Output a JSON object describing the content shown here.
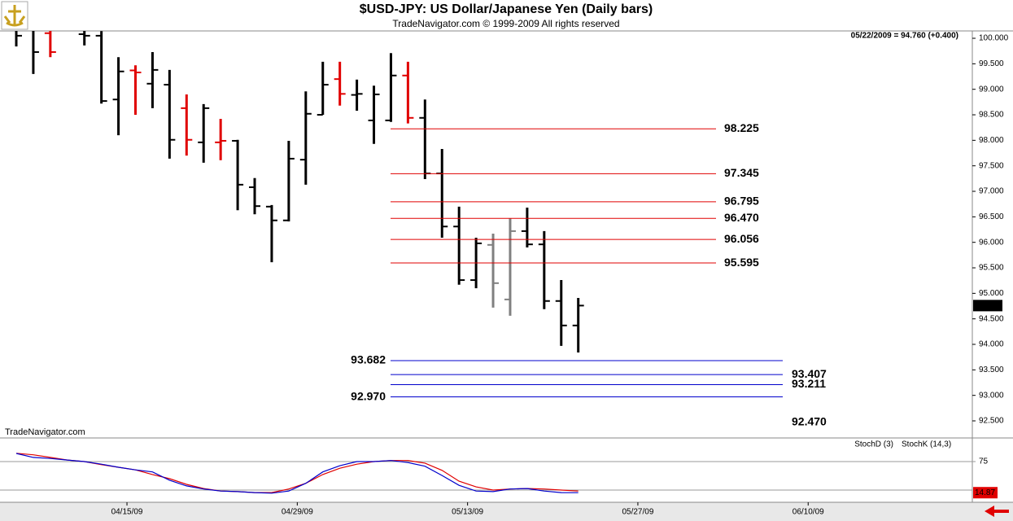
{
  "chart_data": [
    {
      "type": "ohlc",
      "title": "$USD-JPY:  US Dollar/Japanese Yen  (Daily bars)",
      "subtitle": "TradeNavigator.com © 1999-2009 All rights reserved",
      "last_quote": "05/22/2009 = 94.760 (+0.400)",
      "watermark": "TradeNavigator.com",
      "price_label": {
        "value": 94.76,
        "label": "94.760"
      },
      "categories": [
        null,
        null,
        null,
        null,
        null,
        null,
        "04/15/09",
        null,
        null,
        null,
        null,
        null,
        null,
        null,
        null,
        null,
        "04/29/09",
        null,
        null,
        null,
        null,
        null,
        null,
        null,
        null,
        null,
        "05/13/09",
        null,
        null,
        null,
        null,
        null,
        null,
        null,
        null,
        null,
        "05/27/09",
        null,
        null,
        null,
        null,
        null,
        null,
        null,
        null,
        null,
        "06/10/09",
        null,
        null,
        null,
        null,
        null,
        null,
        null,
        null,
        null,
        null
      ],
      "open": [
        100.4,
        100.2,
        100.1,
        100.5,
        100.08,
        100.05,
        98.8,
        99.37,
        99.11,
        99.09,
        98.63,
        97.96,
        97.96,
        97.99,
        97.08,
        96.7,
        96.43,
        97.62,
        98.5,
        99.2,
        98.89,
        98.39,
        98.39,
        99.27,
        98.44,
        97.35,
        96.31,
        95.26,
        95.95,
        94.88,
        96.22,
        95.96,
        94.85,
        94.37,
        null,
        null,
        null,
        null,
        null,
        null,
        null,
        null,
        null,
        null,
        null,
        null,
        null,
        null,
        null,
        null,
        null,
        null,
        null,
        null,
        null,
        null,
        null
      ],
      "high": [
        100.6,
        100.4,
        100.3,
        100.7,
        100.3,
        100.14,
        99.63,
        99.47,
        99.73,
        99.38,
        98.9,
        98.71,
        98.42,
        98.01,
        97.26,
        96.73,
        97.99,
        98.96,
        99.54,
        99.54,
        99.19,
        99.07,
        99.71,
        99.54,
        98.8,
        97.83,
        96.7,
        96.09,
        96.17,
        96.47,
        96.68,
        96.22,
        95.26,
        94.91,
        null,
        null,
        null,
        null,
        null,
        null,
        null,
        null,
        null,
        null,
        null,
        null,
        null,
        null,
        null,
        null,
        null,
        null,
        null,
        null,
        null,
        null,
        null
      ],
      "low": [
        99.84,
        99.3,
        99.63,
        100.35,
        99.86,
        98.72,
        98.1,
        98.5,
        98.63,
        97.64,
        97.7,
        97.56,
        97.61,
        96.63,
        96.55,
        95.61,
        96.41,
        97.13,
        98.5,
        98.68,
        98.58,
        97.93,
        98.36,
        98.33,
        97.24,
        96.09,
        95.17,
        95.1,
        94.72,
        94.56,
        95.9,
        94.69,
        93.97,
        93.84,
        null,
        null,
        null,
        null,
        null,
        null,
        null,
        null,
        null,
        null,
        null,
        null,
        null,
        null,
        null,
        null,
        null,
        null,
        null,
        null,
        null,
        null,
        null
      ],
      "close": [
        100.05,
        99.73,
        99.73,
        100.45,
        100.05,
        98.77,
        99.35,
        99.33,
        99.38,
        98.01,
        98.01,
        98.63,
        97.99,
        97.13,
        96.71,
        96.43,
        97.64,
        98.52,
        99.09,
        98.91,
        98.91,
        98.9,
        99.27,
        98.44,
        97.35,
        96.31,
        95.26,
        95.98,
        95.2,
        96.22,
        95.96,
        94.85,
        94.37,
        94.76,
        null,
        null,
        null,
        null,
        null,
        null,
        null,
        null,
        null,
        null,
        null,
        null,
        null,
        null,
        null,
        null,
        null,
        null,
        null,
        null,
        null,
        null,
        null
      ],
      "bar_colors": [
        "#000000",
        "#000000",
        "#e00000",
        "#000000",
        "#000000",
        "#000000",
        "#000000",
        "#e00000",
        "#000000",
        "#000000",
        "#e00000",
        "#000000",
        "#e00000",
        "#000000",
        "#000000",
        "#000000",
        "#000000",
        "#000000",
        "#000000",
        "#e00000",
        "#000000",
        "#000000",
        "#000000",
        "#e00000",
        "#000000",
        "#000000",
        "#000000",
        "#000000",
        "#808080",
        "#808080",
        "#000000",
        "#000000",
        "#000000",
        "#000000",
        null,
        null,
        null,
        null,
        null,
        null,
        null,
        null,
        null,
        null,
        null,
        null,
        null,
        null,
        null,
        null,
        null,
        null,
        null,
        null,
        null,
        null,
        null
      ],
      "ylim": [
        92.165,
        100.144
      ],
      "yticks": [
        {
          "value": 100,
          "label": "100.000"
        },
        {
          "value": 99.5,
          "label": "99.500"
        },
        {
          "value": 99,
          "label": "99.000"
        },
        {
          "value": 98.5,
          "label": "98.500"
        },
        {
          "value": 98,
          "label": "98.000"
        },
        {
          "value": 97.5,
          "label": "97.500"
        },
        {
          "value": 97,
          "label": "97.000"
        },
        {
          "value": 96.5,
          "label": "96.500"
        },
        {
          "value": 96,
          "label": "96.000"
        },
        {
          "value": 95.5,
          "label": "95.500"
        },
        {
          "value": 95,
          "label": "95.000"
        },
        {
          "value": 94.5,
          "label": "94.500"
        },
        {
          "value": 94,
          "label": "94.000"
        },
        {
          "value": 93.5,
          "label": "93.500"
        },
        {
          "value": 93,
          "label": "93.000"
        },
        {
          "value": 92.5,
          "label": "92.500"
        }
      ],
      "levels": [
        {
          "value": 98.225,
          "label": "98.225",
          "color": "#e00000",
          "side": "right",
          "line": true
        },
        {
          "value": 97.345,
          "label": "97.345",
          "color": "#e00000",
          "side": "right",
          "line": true
        },
        {
          "value": 96.795,
          "label": "96.795",
          "color": "#e00000",
          "side": "right",
          "line": true
        },
        {
          "value": 96.47,
          "label": "96.470",
          "color": "#e00000",
          "side": "right",
          "line": true
        },
        {
          "value": 96.056,
          "label": "96.056",
          "color": "#e00000",
          "side": "right",
          "line": true
        },
        {
          "value": 95.595,
          "label": "95.595",
          "color": "#e00000",
          "side": "right",
          "line": true
        },
        {
          "value": 93.682,
          "label": "93.682",
          "color": "#0000cc",
          "side": "left",
          "line": true
        },
        {
          "value": 93.407,
          "label": "93.407",
          "color": "#0000cc",
          "side": "right",
          "line": true
        },
        {
          "value": 93.211,
          "label": "93.211",
          "color": "#0000cc",
          "side": "right",
          "line": true
        },
        {
          "value": 92.97,
          "label": "92.970",
          "color": "#0000cc",
          "side": "left",
          "line": true
        },
        {
          "value": 92.47,
          "label": "92.470",
          "color": "#0000cc",
          "side": "right",
          "line": false
        }
      ]
    },
    {
      "type": "line",
      "series": [
        {
          "name": "StochD (3)",
          "color": "#e00000",
          "values": [
            91,
            88,
            83,
            78,
            75,
            69,
            64,
            59,
            50,
            42,
            31,
            23,
            18,
            17,
            15,
            15,
            22,
            33,
            50,
            62,
            70,
            75,
            77,
            77,
            72,
            58,
            37,
            26,
            20,
            22,
            23,
            22,
            20,
            18,
            null,
            null,
            null,
            null,
            null,
            null,
            null,
            null,
            null,
            null,
            null,
            null,
            null,
            null,
            null,
            null,
            null,
            null,
            null,
            null,
            null,
            null,
            null
          ]
        },
        {
          "name": "StochK (14,3)",
          "color": "#0000cc",
          "values": [
            90.7,
            83,
            81,
            78,
            75,
            70,
            64,
            59,
            55,
            39,
            28,
            22,
            18,
            17,
            15,
            14,
            18,
            33,
            55,
            67,
            75,
            75,
            77,
            73,
            66,
            48,
            29,
            18,
            17,
            22,
            23,
            18,
            15,
            14.87,
            null,
            null,
            null,
            null,
            null,
            null,
            null,
            null,
            null,
            null,
            null,
            null,
            null,
            null,
            null,
            null,
            null,
            null,
            null,
            null,
            null,
            null,
            null
          ]
        }
      ],
      "value_label": {
        "value": 14.87,
        "label": "14.87"
      },
      "ylim": [
        -0.5,
        117.4
      ],
      "yticks": [
        75
      ],
      "ref_lines": [
        20
      ]
    }
  ]
}
